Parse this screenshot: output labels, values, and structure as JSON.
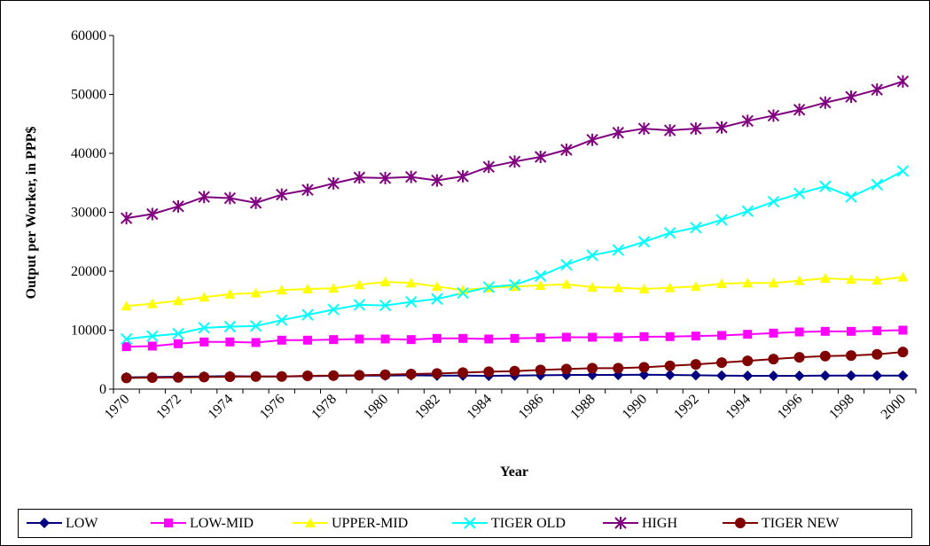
{
  "chart_data": {
    "type": "line",
    "x_label": "Year",
    "y_label": "Output per Worker, in PPP$",
    "categories": [
      "1970",
      null,
      "1972",
      null,
      "1974",
      null,
      "1976",
      null,
      "1978",
      null,
      "1980",
      null,
      "1982",
      null,
      "1984",
      null,
      "1986",
      null,
      "1988",
      null,
      "1990",
      null,
      "1992",
      null,
      "1994",
      null,
      "1996",
      null,
      "1998",
      null,
      "2000"
    ],
    "ylim": [
      0,
      60000
    ],
    "yticks": [
      0,
      10000,
      20000,
      30000,
      40000,
      50000,
      60000
    ],
    "grid": false,
    "legend": "bottom",
    "series": [
      {
        "name": "LOW",
        "color": "#000080",
        "marker": "diamond",
        "values": [
          2000,
          2050,
          2100,
          2150,
          2200,
          2150,
          2150,
          2200,
          2250,
          2300,
          2300,
          2350,
          2300,
          2300,
          2250,
          2300,
          2350,
          2400,
          2400,
          2400,
          2450,
          2400,
          2350,
          2300,
          2250,
          2250,
          2250,
          2300,
          2300,
          2300,
          2300
        ]
      },
      {
        "name": "LOW-MID",
        "color": "#ff00ff",
        "marker": "square",
        "values": [
          7200,
          7300,
          7700,
          8000,
          8000,
          7900,
          8300,
          8300,
          8400,
          8500,
          8500,
          8400,
          8600,
          8600,
          8500,
          8600,
          8700,
          8800,
          8800,
          8800,
          8900,
          8900,
          9000,
          9100,
          9300,
          9500,
          9700,
          9800,
          9800,
          9900,
          10000
        ]
      },
      {
        "name": "UPPER-MID",
        "color": "#ffff00",
        "marker": "triangle",
        "values": [
          14100,
          14500,
          15000,
          15600,
          16100,
          16300,
          16800,
          17000,
          17100,
          17700,
          18200,
          18000,
          17400,
          16800,
          17200,
          17400,
          17600,
          17800,
          17300,
          17200,
          17000,
          17200,
          17400,
          17900,
          18000,
          18000,
          18400,
          18800,
          18600,
          18500,
          19000
        ]
      },
      {
        "name": "TIGER OLD",
        "color": "#00ffff",
        "marker": "x",
        "values": [
          8500,
          9000,
          9400,
          10400,
          10600,
          10700,
          11700,
          12600,
          13500,
          14300,
          14200,
          14800,
          15300,
          16300,
          17300,
          17700,
          19200,
          21100,
          22700,
          23600,
          25000,
          26500,
          27400,
          28700,
          30200,
          31800,
          33200,
          34400,
          32600,
          34700,
          37000
        ]
      },
      {
        "name": "HIGH",
        "color": "#800080",
        "marker": "star",
        "values": [
          29000,
          29700,
          31000,
          32600,
          32400,
          31600,
          33000,
          33800,
          34900,
          35900,
          35800,
          36000,
          35400,
          36100,
          37700,
          38600,
          39400,
          40600,
          42300,
          43500,
          44200,
          43900,
          44200,
          44400,
          45500,
          46400,
          47400,
          48600,
          49600,
          50800,
          52200
        ]
      },
      {
        "name": "TIGER NEW",
        "color": "#800000",
        "marker": "circle",
        "values": [
          1900,
          1950,
          2000,
          2050,
          2100,
          2150,
          2150,
          2250,
          2300,
          2350,
          2450,
          2550,
          2650,
          2800,
          2950,
          3050,
          3250,
          3400,
          3550,
          3550,
          3700,
          3950,
          4200,
          4500,
          4800,
          5100,
          5400,
          5600,
          5700,
          5900,
          6300
        ]
      }
    ]
  }
}
